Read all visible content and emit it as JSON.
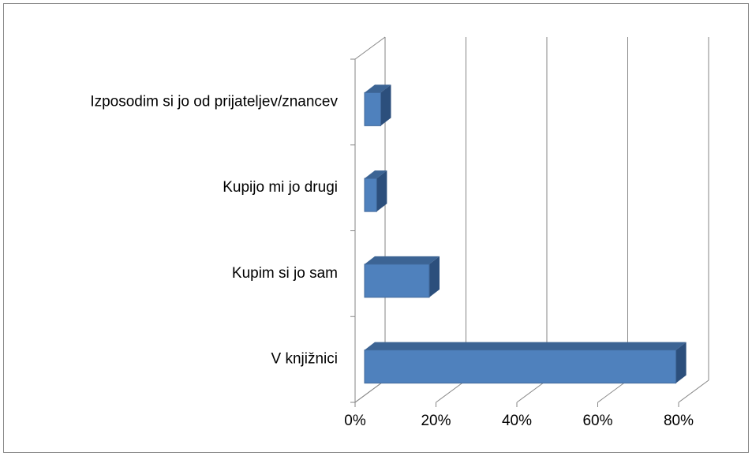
{
  "chart_data": {
    "type": "bar3d_horizontal",
    "categories": [
      "Izposodim si jo od prijateljev/znancev",
      "Kupijo mi jo drugi",
      "Kupim si jo sam",
      "V knjižnici"
    ],
    "values": [
      4,
      3,
      16,
      77
    ],
    "color": "#4f81bd",
    "xlim": [
      0,
      80
    ],
    "xticks": [
      {
        "value": 0,
        "label": "0%"
      },
      {
        "value": 20,
        "label": "20%"
      },
      {
        "value": 40,
        "label": "40%"
      },
      {
        "value": 60,
        "label": "60%"
      },
      {
        "value": 80,
        "label": "80%"
      }
    ],
    "grid": true
  }
}
